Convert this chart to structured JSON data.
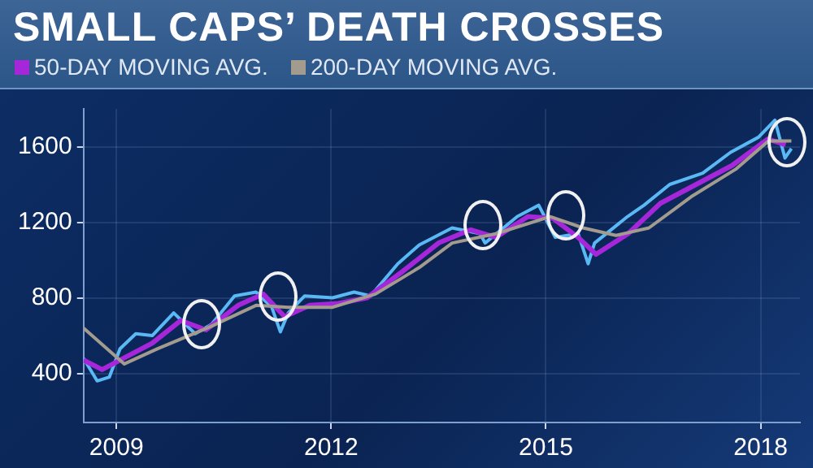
{
  "chart_data": {
    "type": "line",
    "title": "SMALL CAPS’ DEATH CROSSES",
    "xlim": [
      2008.54,
      2018.55
    ],
    "xticks": [
      2009,
      2012,
      2015,
      2018
    ],
    "ylim": [
      140,
      1800
    ],
    "yticks": [
      400,
      800,
      1200,
      1600
    ],
    "grid": true,
    "legend": "top left",
    "marker": "none",
    "series": [
      {
        "color": "#5ab8f5",
        "x": [
          2008.54,
          2008.73,
          2008.9,
          2009.05,
          2009.27,
          2009.5,
          2009.8,
          2010.1,
          2010.33,
          2010.65,
          2010.95,
          2011.17,
          2011.29,
          2011.4,
          2011.63,
          2012.02,
          2012.32,
          2012.55,
          2012.93,
          2013.23,
          2013.69,
          2014.08,
          2014.15,
          2014.6,
          2014.9,
          2015.13,
          2015.45,
          2015.59,
          2015.68,
          2016.14,
          2016.37,
          2016.73,
          2017.19,
          2017.58,
          2017.97,
          2018.2,
          2018.34,
          2018.43
        ],
        "values": [
          480,
          360,
          380,
          530,
          610,
          600,
          720,
          610,
          660,
          810,
          830,
          750,
          620,
          720,
          810,
          800,
          830,
          810,
          980,
          1080,
          1170,
          1140,
          1090,
          1230,
          1290,
          1120,
          1140,
          980,
          1090,
          1230,
          1290,
          1400,
          1460,
          1570,
          1650,
          1740,
          1540,
          1590
        ]
      },
      {
        "name": "50-DAY MOVING AVG.",
        "color": "#a626d9",
        "x": [
          2008.54,
          2008.8,
          2009.1,
          2009.5,
          2009.9,
          2010.25,
          2010.7,
          2011.05,
          2011.35,
          2011.7,
          2012.1,
          2012.5,
          2013.0,
          2013.5,
          2013.95,
          2014.3,
          2014.75,
          2015.1,
          2015.45,
          2015.7,
          2016.15,
          2016.6,
          2017.1,
          2017.6,
          2018.1,
          2018.35
        ],
        "values": [
          470,
          420,
          480,
          560,
          680,
          630,
          760,
          820,
          700,
          760,
          770,
          800,
          940,
          1090,
          1160,
          1120,
          1230,
          1220,
          1120,
          1030,
          1140,
          1300,
          1400,
          1500,
          1640,
          1610
        ]
      },
      {
        "name": "200-DAY MOVING AVG.",
        "color": "#a39c8e",
        "x": [
          2008.54,
          2009.11,
          2009.57,
          2010.33,
          2010.95,
          2011.4,
          2012.02,
          2012.62,
          2013.23,
          2013.69,
          2014.31,
          2015.06,
          2015.52,
          2015.98,
          2016.44,
          2017.05,
          2017.65,
          2018.11,
          2018.43
        ],
        "values": [
          640,
          450,
          530,
          650,
          760,
          750,
          750,
          820,
          960,
          1090,
          1140,
          1230,
          1170,
          1130,
          1170,
          1340,
          1480,
          1630,
          1630
        ]
      }
    ]
  }
}
